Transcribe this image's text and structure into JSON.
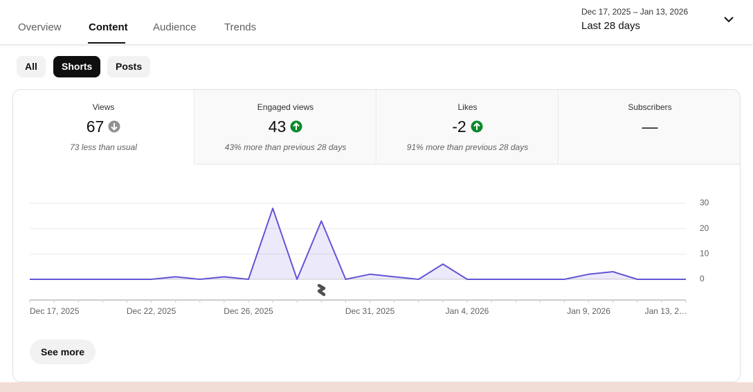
{
  "tabs": [
    "Overview",
    "Content",
    "Audience",
    "Trends"
  ],
  "date_range": {
    "dates": "Dec 17, 2025 – Jan 13, 2026",
    "label": "Last 28 days"
  },
  "filters": [
    "All",
    "Shorts",
    "Posts"
  ],
  "metrics": [
    {
      "title": "Views",
      "value": 67,
      "note": "73 less than usual"
    },
    {
      "title": "Engaged views",
      "value": 43,
      "note": "43% more than previous 28 days"
    },
    {
      "title": "Likes",
      "value": -2,
      "note": "91% more than previous 28 days"
    },
    {
      "title": "Subscribers",
      "value": "—"
    }
  ],
  "chart": {
    "type": "line",
    "categories": [
      "Dec 17, 2025",
      null,
      null,
      null,
      null,
      "Dec 22, 2025",
      null,
      null,
      null,
      "Dec 26, 2025",
      null,
      null,
      null,
      null,
      "Dec 31, 2025",
      null,
      null,
      null,
      "Jan 4, 2026",
      null,
      null,
      null,
      null,
      "Jan 9, 2026",
      null,
      null,
      null,
      "Jan 13, 2…"
    ],
    "values": [
      0,
      0,
      0,
      0,
      0,
      0,
      1,
      0,
      1,
      0,
      28,
      0,
      23,
      0,
      2,
      1,
      0,
      6,
      0,
      0,
      0,
      0,
      0,
      2,
      3,
      0,
      0,
      0
    ],
    "color": "#6254d6",
    "ylim": [
      0,
      30
    ],
    "yticks": [
      0,
      10,
      20,
      30
    ],
    "grid": true
  },
  "see_more": "See more"
}
